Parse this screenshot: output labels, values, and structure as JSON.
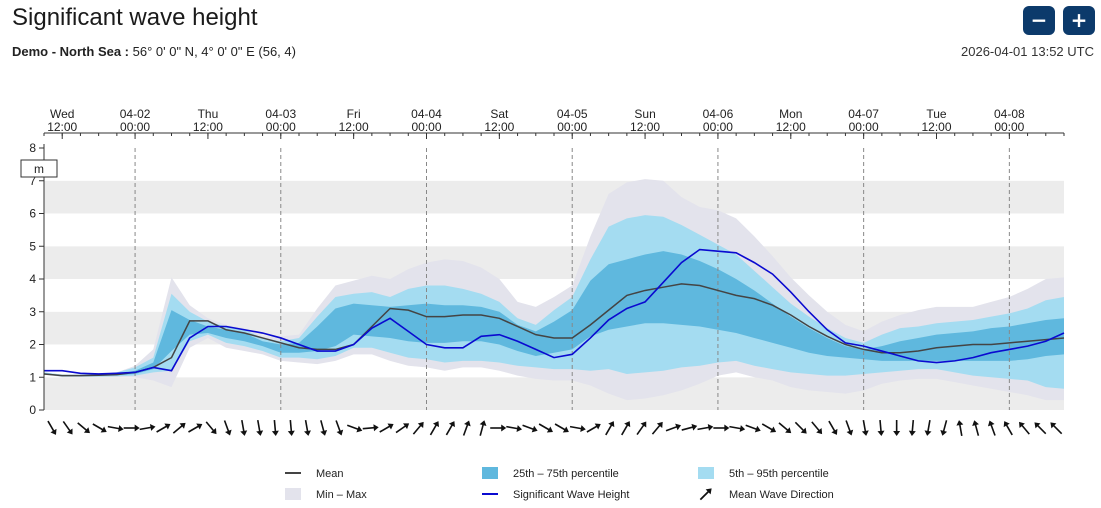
{
  "header": {
    "title": "Significant wave height",
    "location_bold": "Demo - North Sea :",
    "location_rest": " 56° 0' 0\" N, 4° 0' 0\" E (56, 4)",
    "timestamp": "2026-04-01 13:52 UTC",
    "zoom_out_label": "−",
    "zoom_in_label": "+"
  },
  "chart_data": {
    "type": "area",
    "title": "Significant wave height",
    "ylabel": "m",
    "ylim": [
      0,
      8
    ],
    "yticks": [
      0,
      1,
      2,
      3,
      4,
      5,
      6,
      7,
      8
    ],
    "xlim_hours": [
      -3,
      165
    ],
    "grid": "horizontal bands, dashed vertical at midnight",
    "x_tick_labels": [
      {
        "h": 0,
        "top": "Wed",
        "bottom": "12:00"
      },
      {
        "h": 12,
        "top": "04-02",
        "bottom": "00:00"
      },
      {
        "h": 24,
        "top": "Thu",
        "bottom": "12:00"
      },
      {
        "h": 36,
        "top": "04-03",
        "bottom": "00:00"
      },
      {
        "h": 48,
        "top": "Fri",
        "bottom": "12:00"
      },
      {
        "h": 60,
        "top": "04-04",
        "bottom": "00:00"
      },
      {
        "h": 72,
        "top": "Sat",
        "bottom": "12:00"
      },
      {
        "h": 84,
        "top": "04-05",
        "bottom": "00:00"
      },
      {
        "h": 96,
        "top": "Sun",
        "bottom": "12:00"
      },
      {
        "h": 108,
        "top": "04-06",
        "bottom": "00:00"
      },
      {
        "h": 120,
        "top": "Mon",
        "bottom": "12:00"
      },
      {
        "h": 132,
        "top": "04-07",
        "bottom": "00:00"
      },
      {
        "h": 144,
        "top": "Tue",
        "bottom": "12:00"
      },
      {
        "h": 156,
        "top": "04-08",
        "bottom": "00:00"
      }
    ],
    "midnight_hours": [
      12,
      36,
      60,
      84,
      108,
      132,
      156
    ],
    "x_hours": [
      -3,
      0,
      3,
      6,
      9,
      12,
      15,
      18,
      21,
      24,
      27,
      30,
      33,
      36,
      39,
      42,
      45,
      48,
      51,
      54,
      57,
      60,
      63,
      66,
      69,
      72,
      75,
      78,
      81,
      84,
      87,
      90,
      93,
      96,
      99,
      102,
      105,
      108,
      111,
      114,
      117,
      120,
      123,
      126,
      129,
      132,
      135,
      138,
      141,
      144,
      147,
      150,
      153,
      156,
      159,
      162,
      165
    ],
    "series": [
      {
        "name": "Min – Max",
        "color": "#e3e3ec",
        "upper": [
          1.15,
          1.08,
          1.08,
          1.1,
          1.15,
          1.35,
          1.85,
          4.05,
          3.2,
          2.8,
          2.6,
          2.5,
          2.25,
          2.25,
          2.3,
          3.1,
          3.8,
          3.95,
          4.1,
          4.0,
          4.3,
          4.5,
          4.6,
          4.55,
          4.35,
          4.0,
          3.3,
          3.15,
          3.45,
          3.8,
          5.3,
          6.6,
          6.95,
          7.05,
          7.0,
          6.5,
          6.2,
          6.1,
          5.85,
          5.3,
          4.7,
          4.05,
          3.5,
          3.0,
          2.6,
          2.4,
          2.7,
          2.9,
          3.05,
          3.15,
          3.15,
          3.15,
          3.3,
          3.45,
          3.7,
          4.0,
          4.05
        ],
        "lower": [
          1.1,
          1.0,
          1.0,
          1.0,
          1.0,
          1.0,
          0.9,
          0.7,
          1.9,
          2.2,
          1.9,
          1.8,
          1.7,
          1.5,
          1.45,
          1.4,
          1.5,
          1.7,
          1.7,
          1.5,
          1.35,
          1.3,
          1.2,
          1.3,
          1.3,
          1.2,
          1.05,
          0.95,
          0.9,
          0.9,
          0.75,
          0.5,
          0.3,
          0.35,
          0.45,
          0.6,
          0.8,
          1.05,
          1.15,
          1.0,
          0.9,
          0.7,
          0.6,
          0.55,
          0.5,
          0.6,
          0.8,
          0.9,
          0.95,
          0.95,
          0.85,
          0.75,
          0.65,
          0.55,
          0.45,
          0.3,
          0.3
        ]
      },
      {
        "name": "5th – 95th percentile",
        "color": "#a4dcf1",
        "upper": [
          1.15,
          1.08,
          1.08,
          1.1,
          1.15,
          1.3,
          1.6,
          3.55,
          3.0,
          2.7,
          2.55,
          2.45,
          2.2,
          2.1,
          2.2,
          2.85,
          3.45,
          3.55,
          3.6,
          3.45,
          3.7,
          3.8,
          3.8,
          3.7,
          3.55,
          3.3,
          2.8,
          2.6,
          3.05,
          3.45,
          4.6,
          5.6,
          5.85,
          5.95,
          5.9,
          5.65,
          5.35,
          5.05,
          4.75,
          4.25,
          3.75,
          3.25,
          2.85,
          2.5,
          2.2,
          2.05,
          2.3,
          2.5,
          2.55,
          2.65,
          2.7,
          2.75,
          2.85,
          2.95,
          3.1,
          3.35,
          3.45
        ],
        "lower": [
          1.1,
          1.02,
          1.02,
          1.02,
          1.03,
          1.05,
          1.15,
          1.2,
          2.1,
          2.3,
          2.05,
          1.95,
          1.8,
          1.6,
          1.6,
          1.55,
          1.65,
          1.9,
          1.9,
          1.75,
          1.6,
          1.55,
          1.45,
          1.5,
          1.5,
          1.45,
          1.35,
          1.3,
          1.25,
          1.25,
          1.2,
          1.25,
          1.1,
          1.15,
          1.2,
          1.3,
          1.35,
          1.45,
          1.5,
          1.35,
          1.25,
          1.15,
          1.1,
          1.05,
          1.05,
          1.1,
          1.15,
          1.2,
          1.25,
          1.25,
          1.15,
          1.05,
          1.0,
          0.95,
          0.9,
          0.7,
          0.65
        ]
      },
      {
        "name": "25th – 75th percentile",
        "color": "#5fb8de",
        "upper": [
          1.13,
          1.06,
          1.06,
          1.07,
          1.1,
          1.2,
          1.45,
          3.05,
          2.75,
          2.55,
          2.45,
          2.35,
          2.1,
          2.0,
          2.05,
          2.55,
          3.1,
          3.25,
          3.2,
          3.15,
          3.2,
          3.25,
          3.2,
          3.2,
          3.15,
          3.0,
          2.6,
          2.4,
          2.7,
          3.05,
          3.95,
          4.45,
          4.6,
          4.75,
          4.85,
          4.75,
          4.55,
          4.3,
          4.0,
          3.65,
          3.25,
          2.85,
          2.5,
          2.2,
          1.95,
          1.85,
          1.95,
          2.1,
          2.2,
          2.3,
          2.35,
          2.4,
          2.5,
          2.55,
          2.65,
          2.75,
          2.8
        ],
        "lower": [
          1.12,
          1.04,
          1.04,
          1.05,
          1.06,
          1.1,
          1.25,
          1.8,
          2.3,
          2.35,
          2.2,
          2.1,
          1.95,
          1.75,
          1.75,
          1.8,
          1.95,
          2.3,
          2.25,
          2.2,
          2.1,
          2.05,
          2.05,
          2.1,
          2.1,
          2.0,
          1.8,
          1.65,
          1.75,
          1.85,
          2.25,
          2.45,
          2.55,
          2.65,
          2.65,
          2.6,
          2.55,
          2.45,
          2.35,
          2.2,
          2.05,
          1.9,
          1.75,
          1.65,
          1.6,
          1.55,
          1.5,
          1.5,
          1.5,
          1.5,
          1.5,
          1.5,
          1.5,
          1.5,
          1.55,
          1.65,
          1.7
        ]
      },
      {
        "name": "Mean",
        "color": "#444444",
        "values": [
          1.1,
          1.05,
          1.05,
          1.06,
          1.08,
          1.15,
          1.3,
          1.6,
          2.72,
          2.72,
          2.45,
          2.35,
          2.2,
          2.05,
          1.9,
          1.85,
          1.85,
          2.0,
          2.55,
          3.1,
          3.05,
          2.85,
          2.85,
          2.9,
          2.9,
          2.8,
          2.55,
          2.3,
          2.2,
          2.2,
          2.6,
          3.05,
          3.5,
          3.65,
          3.75,
          3.85,
          3.8,
          3.65,
          3.5,
          3.4,
          3.2,
          2.9,
          2.55,
          2.25,
          2.0,
          1.85,
          1.75,
          1.75,
          1.8,
          1.9,
          1.95,
          2.0,
          2.0,
          2.05,
          2.1,
          2.15,
          2.2
        ]
      },
      {
        "name": "Significant Wave Height",
        "color": "#0a0ad0",
        "values": [
          1.2,
          1.2,
          1.12,
          1.1,
          1.12,
          1.15,
          1.3,
          1.2,
          2.2,
          2.55,
          2.55,
          2.45,
          2.35,
          2.2,
          2.0,
          1.8,
          1.8,
          2.0,
          2.5,
          2.8,
          2.4,
          2.0,
          1.9,
          1.9,
          2.25,
          2.3,
          2.1,
          1.85,
          1.6,
          1.7,
          2.2,
          2.75,
          3.1,
          3.3,
          3.9,
          4.5,
          4.9,
          4.85,
          4.8,
          4.5,
          4.15,
          3.6,
          3.0,
          2.45,
          2.05,
          1.95,
          1.8,
          1.65,
          1.5,
          1.45,
          1.5,
          1.6,
          1.75,
          1.85,
          1.95,
          2.1,
          2.35
        ]
      }
    ],
    "direction_degrees": [
      150,
      145,
      130,
      120,
      100,
      90,
      80,
      60,
      50,
      60,
      140,
      160,
      170,
      170,
      175,
      175,
      170,
      165,
      160,
      110,
      85,
      60,
      55,
      40,
      30,
      30,
      20,
      15,
      90,
      100,
      110,
      120,
      120,
      100,
      60,
      30,
      30,
      35,
      40,
      70,
      75,
      80,
      90,
      100,
      110,
      120,
      130,
      135,
      140,
      150,
      160,
      170,
      175,
      180,
      185,
      190,
      195,
      350,
      345,
      340,
      330,
      320,
      315,
      315
    ]
  },
  "legend": [
    {
      "label": "Mean",
      "symbol": "line",
      "color": "#444444"
    },
    {
      "label": "25th – 75th percentile",
      "symbol": "box",
      "color": "#5fb8de"
    },
    {
      "label": "5th – 95th percentile",
      "symbol": "box",
      "color": "#a4dcf1"
    },
    {
      "label": "Min – Max",
      "symbol": "box",
      "color": "#e3e3ec"
    },
    {
      "label": "Significant Wave Height",
      "symbol": "line",
      "color": "#0a0ad0"
    },
    {
      "label": "Mean Wave Direction",
      "symbol": "arrow",
      "color": "#111111"
    }
  ]
}
